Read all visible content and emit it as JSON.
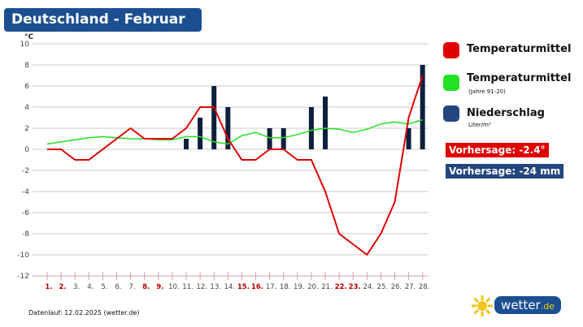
{
  "title": "Deutschland - Februar",
  "footer": "Datenlauf: 12.02.2025 (wetter.de)",
  "logo": {
    "text": "wetter",
    "tld": ".de"
  },
  "legend": [
    {
      "label": "Temperaturmittel",
      "sub": "",
      "color": "#e00000"
    },
    {
      "label": "Temperaturmittel",
      "sub": "(Jahre 91-20)",
      "color": "#22e022"
    },
    {
      "label": "Niederschlag",
      "sub": "Liter/m²",
      "color": "#24467e"
    }
  ],
  "forecast": {
    "temp": "Vorhersage: -2.4°",
    "temp_color": "#e00000",
    "precip": "Vorhersage: -24 mm",
    "precip_color": "#24467e"
  },
  "chart_data": {
    "type": "bar+line",
    "ylabel": "°C",
    "ylim": [
      -12,
      10
    ],
    "yticks": [
      10,
      8,
      6,
      4,
      2,
      0,
      -2,
      -4,
      -6,
      -8,
      -10,
      -12
    ],
    "grid": true,
    "categories": [
      "1.",
      "2.",
      "3.",
      "4.",
      "5.",
      "6.",
      "7.",
      "8.",
      "9.",
      "10.",
      "11.",
      "12.",
      "13.",
      "14.",
      "15.",
      "16.",
      "17.",
      "18.",
      "19.",
      "20.",
      "21.",
      "22.",
      "23.",
      "24.",
      "25.",
      "26.",
      "27.",
      "28."
    ],
    "weekend_days": [
      1,
      2,
      8,
      9,
      15,
      16,
      22,
      23
    ],
    "series": [
      {
        "name": "Temperaturmittel",
        "type": "line",
        "color": "#e00000",
        "values": [
          0,
          0,
          -1,
          -1,
          0,
          1,
          2,
          1,
          1,
          1,
          2,
          4,
          4,
          1,
          -1,
          -1,
          0,
          0,
          -1,
          -1,
          -4,
          -8,
          -9,
          -10,
          -8,
          -5,
          3,
          7
        ]
      },
      {
        "name": "Temperaturmittel (Jahre 91-20)",
        "type": "line",
        "color": "#22e022",
        "values": [
          0.5,
          0.7,
          0.9,
          1.1,
          1.2,
          1.1,
          1.0,
          1.0,
          0.9,
          0.9,
          1.2,
          1.2,
          0.7,
          0.5,
          1.3,
          1.6,
          1.1,
          1.1,
          1.4,
          1.8,
          2.0,
          1.9,
          1.6,
          1.9,
          2.4,
          2.6,
          2.4,
          2.8
        ]
      },
      {
        "name": "Niederschlag",
        "type": "bar",
        "color": "#0d1f3c",
        "values": [
          0,
          0,
          0,
          0,
          0,
          0,
          0,
          0,
          0,
          0,
          1,
          3,
          6,
          4,
          0,
          0,
          2,
          2,
          0,
          4,
          5,
          0,
          0,
          0,
          0,
          0,
          2,
          8
        ]
      }
    ]
  }
}
